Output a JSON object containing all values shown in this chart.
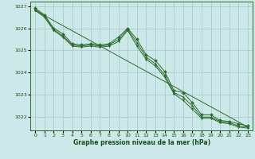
{
  "background_color": "#cce8e8",
  "grid_color": "#aacccc",
  "line_color": "#2d6b2d",
  "xlabel": "Graphe pression niveau de la mer (hPa)",
  "ylim": [
    1021.4,
    1027.2
  ],
  "xlim": [
    -0.5,
    23.5
  ],
  "yticks": [
    1022,
    1023,
    1024,
    1025,
    1026,
    1027
  ],
  "xticks": [
    0,
    1,
    2,
    3,
    4,
    5,
    6,
    7,
    8,
    9,
    10,
    11,
    12,
    13,
    14,
    15,
    16,
    17,
    18,
    19,
    20,
    21,
    22,
    23
  ],
  "series": [
    {
      "x": [
        0,
        1,
        2,
        3,
        4,
        5,
        6,
        7,
        8,
        9,
        10,
        11,
        12,
        13,
        14,
        15,
        16,
        17,
        18,
        19,
        20,
        21,
        22,
        23
      ],
      "y": [
        1026.9,
        1026.6,
        1026.0,
        1025.75,
        1025.3,
        1025.25,
        1025.3,
        1025.25,
        1025.3,
        1025.6,
        1026.0,
        1025.5,
        1024.8,
        1024.55,
        1024.05,
        1023.2,
        1023.1,
        1022.65,
        1022.1,
        1022.1,
        1021.85,
        1021.8,
        1021.7,
        1021.6
      ],
      "marker": "D",
      "markersize": 2.0,
      "linewidth": 0.7
    },
    {
      "x": [
        0,
        1,
        2,
        3,
        4,
        5,
        6,
        7,
        8,
        9,
        10,
        11,
        12,
        13,
        14,
        15,
        16,
        17,
        18,
        19,
        20,
        21,
        22,
        23
      ],
      "y": [
        1026.85,
        1026.55,
        1025.95,
        1025.65,
        1025.25,
        1025.2,
        1025.25,
        1025.2,
        1025.25,
        1025.5,
        1025.95,
        1025.35,
        1024.7,
        1024.4,
        1023.9,
        1023.1,
        1022.9,
        1022.5,
        1022.0,
        1022.0,
        1021.8,
        1021.75,
        1021.6,
        1021.55
      ],
      "marker": "^",
      "markersize": 2.0,
      "linewidth": 0.7
    },
    {
      "x": [
        0,
        1,
        2,
        3,
        4,
        5,
        6,
        7,
        8,
        9,
        10,
        11,
        12,
        13,
        14,
        15,
        16,
        17,
        18,
        19,
        20,
        21,
        22,
        23
      ],
      "y": [
        1026.8,
        1026.5,
        1025.9,
        1025.6,
        1025.2,
        1025.15,
        1025.2,
        1025.15,
        1025.2,
        1025.4,
        1025.9,
        1025.2,
        1024.6,
        1024.3,
        1023.8,
        1023.05,
        1022.75,
        1022.35,
        1021.95,
        1021.95,
        1021.75,
        1021.7,
        1021.55,
        1021.5
      ],
      "marker": "v",
      "markersize": 2.0,
      "linewidth": 0.7
    },
    {
      "x": [
        0,
        23
      ],
      "y": [
        1026.8,
        1021.55
      ],
      "marker": "None",
      "markersize": 0,
      "linewidth": 0.7
    }
  ]
}
